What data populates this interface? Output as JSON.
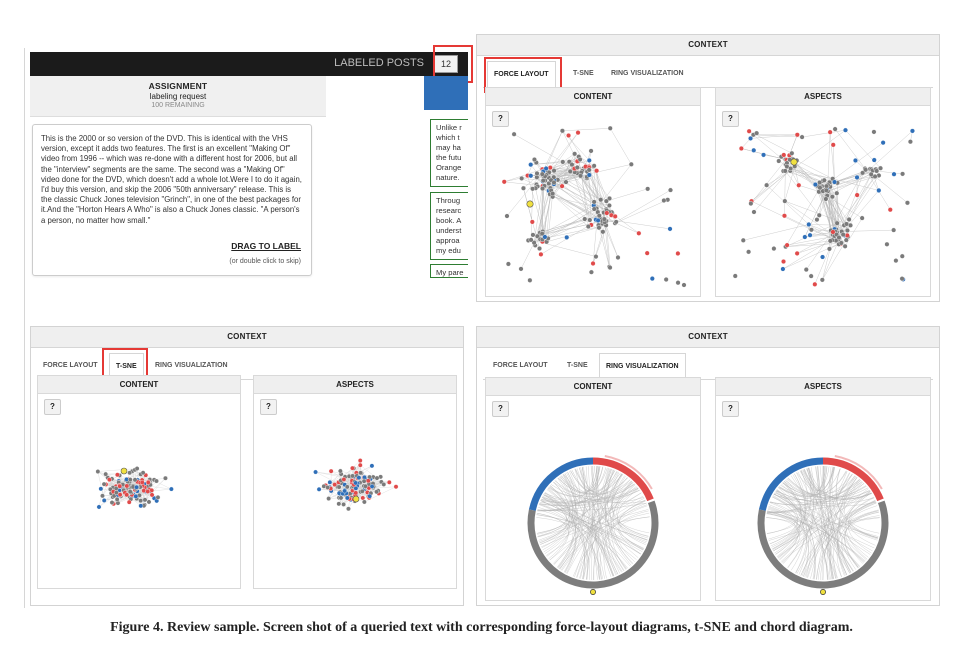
{
  "top_left": {
    "header_label": "LABELED POSTS",
    "badge": "12",
    "assignment_title": "ASSIGNMENT",
    "assignment_subtitle": "labeling request",
    "assignment_remaining": "100 REMAINING",
    "post_text": "This is the 2000 or so version of the DVD. This is identical with the VHS version, except it adds two features. The first is an excellent \"Making Of\" video from 1996 -- which was re-done with a different host for 2006, but all the \"interview\" segments are the same. The second was a \"Making Of\" video done for the DVD, which doesn't add a whole lot.Were I to do it again, I'd buy this version, and skip the 2006 \"50th anniversary\" release. This is the classic Chuck Jones television \"Grinch\", in one of the best packages for it.And the \"Horton Hears A Who\" is also a Chuck Jones classic. \"A person's a person, no matter how small.\"",
    "drag_label": "DRAG TO LABEL",
    "skip_hint": "(or double click to skip)",
    "snippets": [
      "Unlike r which t may ha the futu Orange nature.",
      "Throug researc book. A underst approa my edu",
      "My pare"
    ]
  },
  "panels": [
    {
      "id": "force",
      "title": "CONTEXT",
      "tabs": [
        "FORCE LAYOUT",
        "T-SNE",
        "RING VISUALIZATION"
      ],
      "active_tab": 0,
      "sub_titles": [
        "CONTENT",
        "ASPECTS"
      ],
      "help": "?"
    },
    {
      "id": "tsne",
      "title": "CONTEXT",
      "tabs": [
        "FORCE LAYOUT",
        "T-SNE",
        "RING VISUALIZATION"
      ],
      "active_tab": 1,
      "sub_titles": [
        "CONTENT",
        "ASPECTS"
      ],
      "help": "?"
    },
    {
      "id": "ring",
      "title": "CONTEXT",
      "tabs": [
        "FORCE LAYOUT",
        "T-SNE",
        "RING VISUALIZATION"
      ],
      "active_tab": 2,
      "sub_titles": [
        "CONTENT",
        "ASPECTS"
      ],
      "help": "?"
    }
  ],
  "colors": {
    "gray": "#7a7a7a",
    "blue": "#2f6fb8",
    "red": "#e04a4a",
    "yellow": "#f0e040",
    "highlight": "#e53935"
  },
  "caption": "Figure 4. Review sample. Screen shot of a queried text with corresponding force-layout diagrams, t-SNE and chord diagram."
}
